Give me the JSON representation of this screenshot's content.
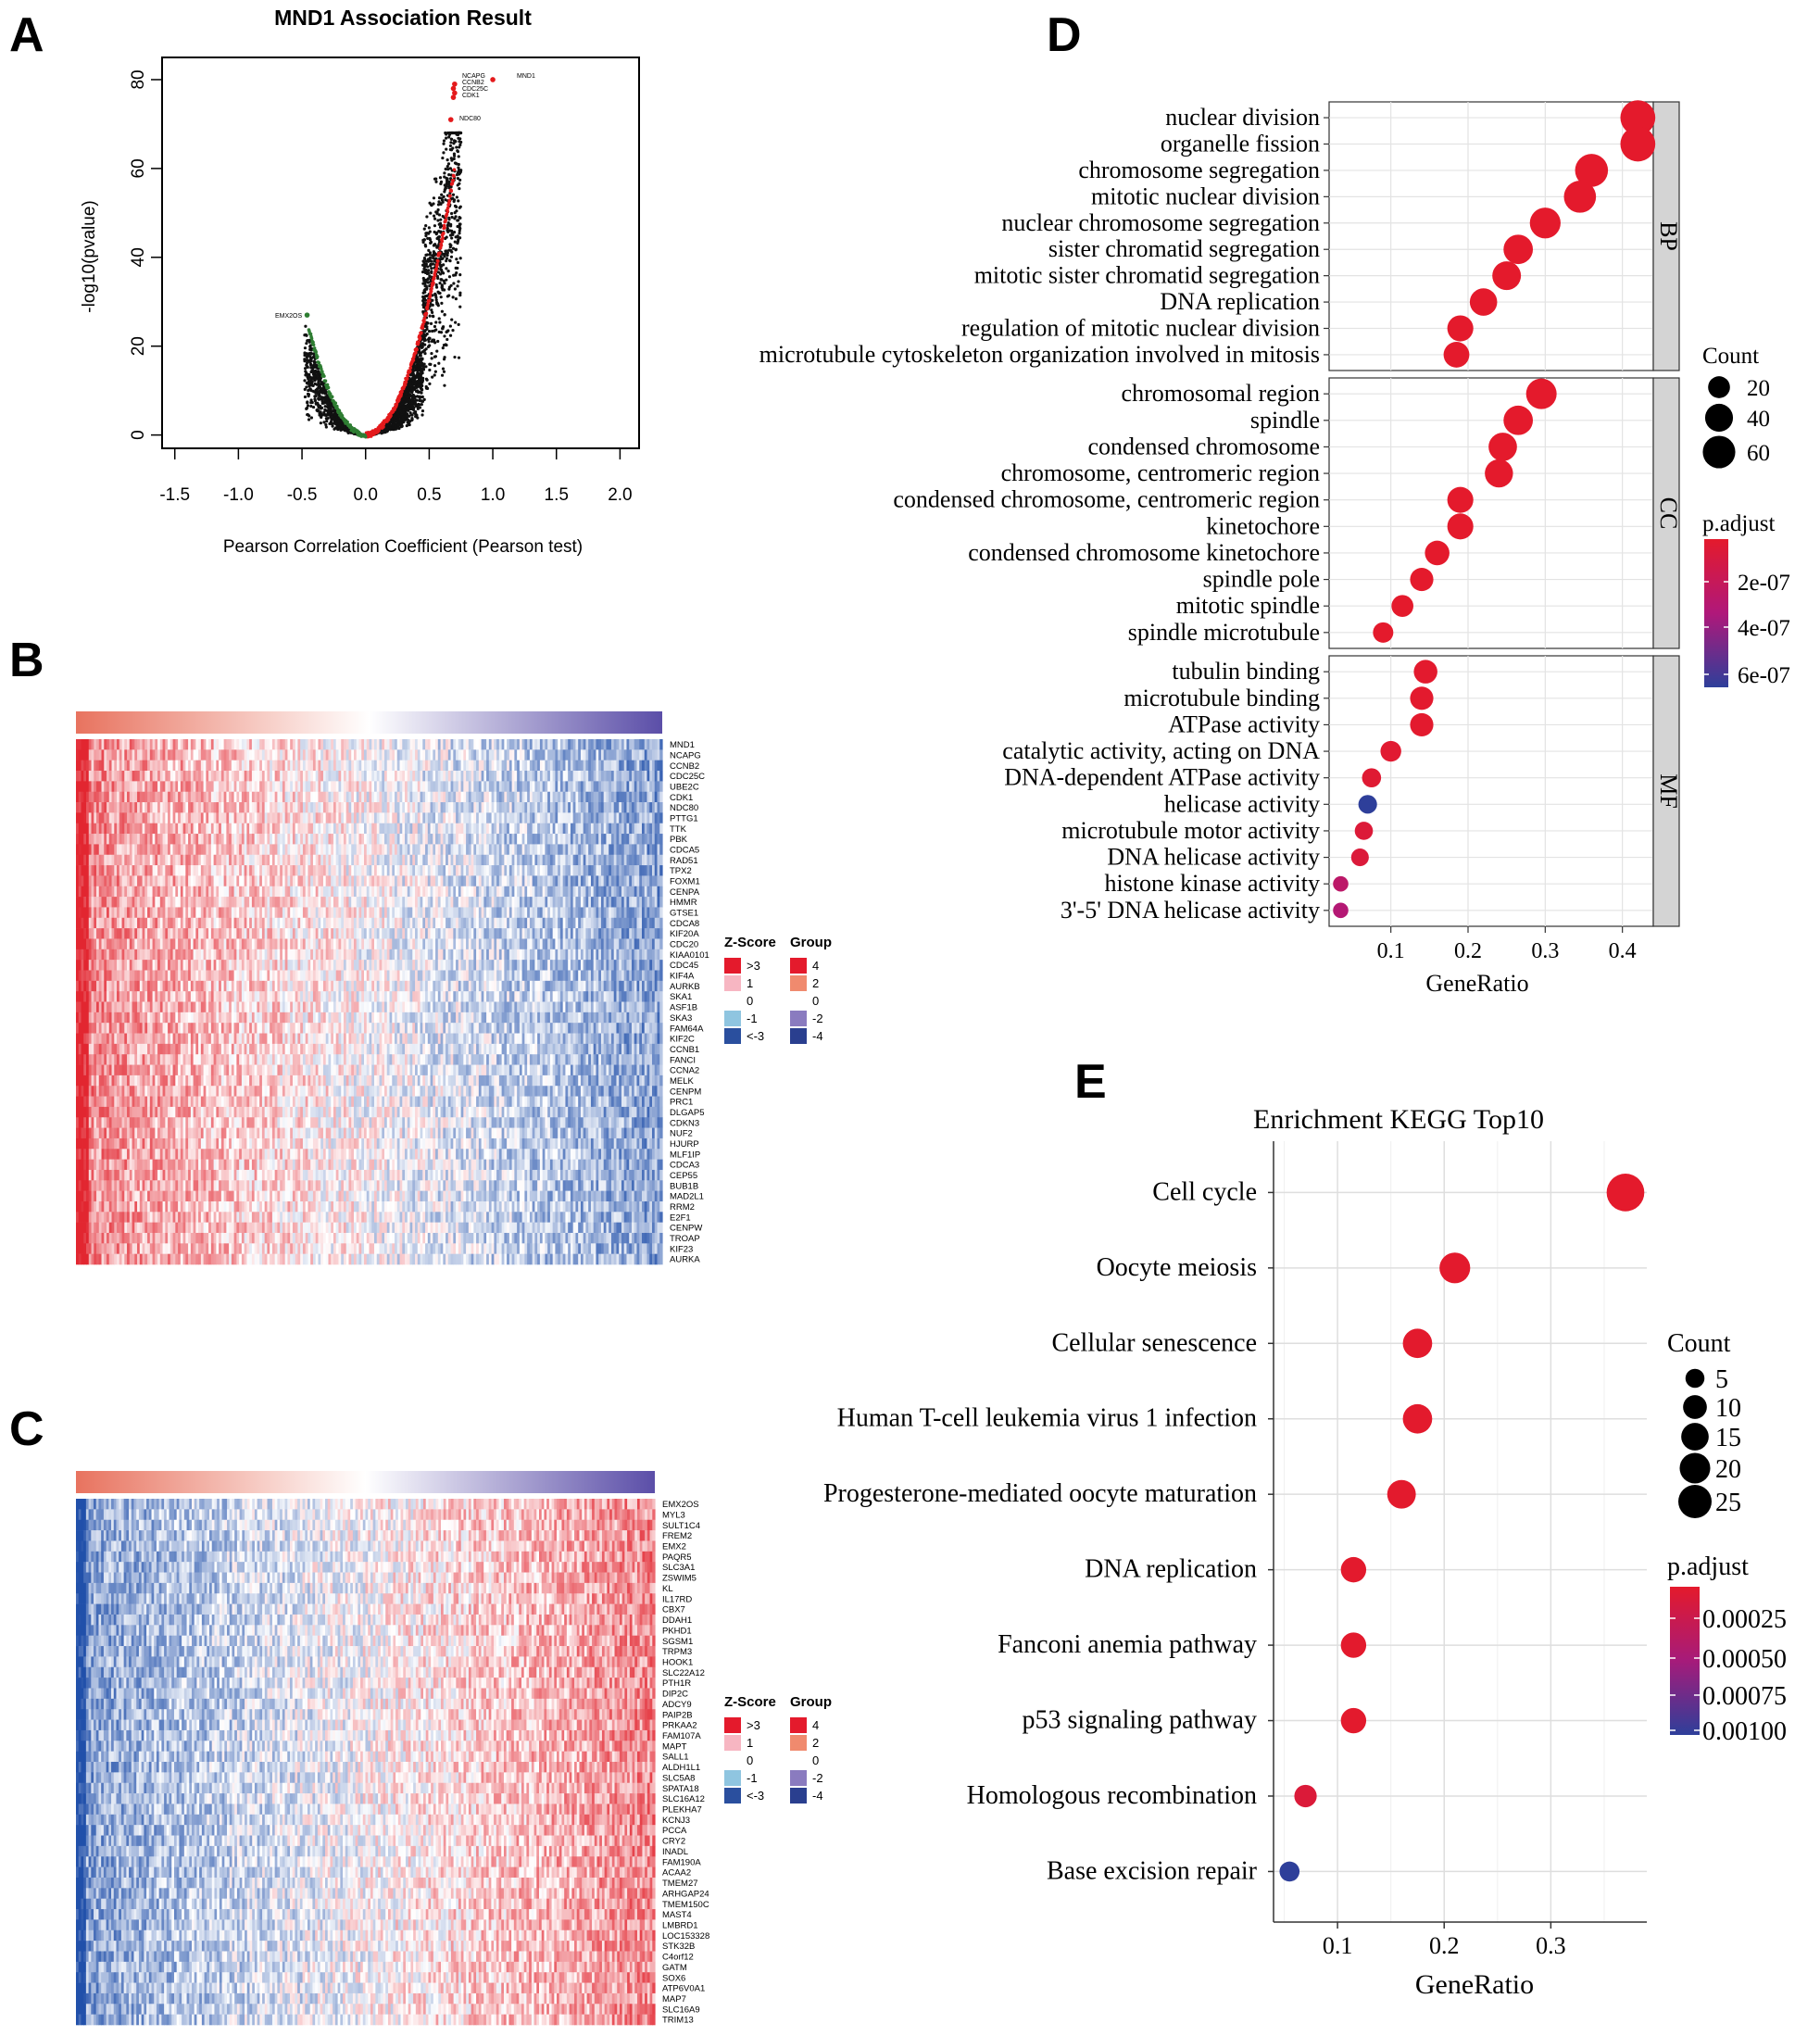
{
  "panel_labels": {
    "a": "A",
    "b": "B",
    "c": "C",
    "d": "D",
    "e": "E"
  },
  "panel_a": {
    "title": "MND1 Association Result",
    "xlabel": "Pearson Correlation Coefficient (Pearson test)",
    "ylabel": "-log10(pvalue)",
    "xticks": [
      "-1.5",
      "-1.0",
      "-0.5",
      "0.0",
      "0.5",
      "1.0",
      "1.5",
      "2.0"
    ],
    "yticks": [
      "0",
      "20",
      "40",
      "60",
      "80"
    ],
    "top_gene_labels": [
      "MND1",
      "NCAPG",
      "CCNB2",
      "CDC25C",
      "CDK1",
      "NDC80"
    ],
    "neg_gene_label": "EMX2OS",
    "positive_color": "#e41a1c",
    "negative_color": "#2e7d32"
  },
  "panel_b": {
    "genes": [
      "MND1",
      "NCAPG",
      "CCNB2",
      "CDC25C",
      "UBE2C",
      "CDK1",
      "NDC80",
      "PTTG1",
      "TTK",
      "PBK",
      "CDCA5",
      "RAD51",
      "TPX2",
      "FOXM1",
      "CENPA",
      "HMMR",
      "GTSE1",
      "CDCA8",
      "KIF20A",
      "CDC20",
      "KIAA0101",
      "CDC45",
      "KIF4A",
      "AURKB",
      "SKA1",
      "ASF1B",
      "SKA3",
      "FAM64A",
      "KIF2C",
      "CCNB1",
      "FANCI",
      "CCNA2",
      "MELK",
      "CENPM",
      "PRC1",
      "DLGAP5",
      "CDKN3",
      "NUF2",
      "HJURP",
      "MLF1IP",
      "CDCA3",
      "CEP55",
      "BUB1B",
      "MAD2L1",
      "RRM2",
      "E2F1",
      "CENPW",
      "TROAP",
      "KIF23",
      "AURKA"
    ],
    "legend_zscore_title": "Z-Score",
    "legend_group_title": "Group",
    "zscore_labels": [
      ">3",
      "1",
      "0",
      "-1",
      "<-3"
    ],
    "group_labels": [
      "4",
      "2",
      "0",
      "-2",
      "-4"
    ]
  },
  "panel_c": {
    "genes": [
      "EMX2OS",
      "MYL3",
      "SULT1C4",
      "FREM2",
      "EMX2",
      "PAQR5",
      "SLC3A1",
      "ZSWIM5",
      "KL",
      "IL17RD",
      "CBX7",
      "DDAH1",
      "PKHD1",
      "SGSM1",
      "TRPM3",
      "HOOK1",
      "SLC22A12",
      "PTH1R",
      "DIP2C",
      "ADCY9",
      "PAIP2B",
      "PRKAA2",
      "FAM107A",
      "MAPT",
      "SALL1",
      "ALDH1L1",
      "SLC5A8",
      "SPATA18",
      "SLC16A12",
      "PLEKHA7",
      "KCNJ3",
      "PCCA",
      "CRY2",
      "INADL",
      "FAM190A",
      "ACAA2",
      "TMEM27",
      "ARHGAP24",
      "TMEM150C",
      "MAST4",
      "LMBRD1",
      "LOC153328",
      "STK32B",
      "C4orf12",
      "GATM",
      "SOX6",
      "ATP6V0A1",
      "MAP7",
      "SLC16A9",
      "TRIM13"
    ],
    "legend_zscore_title": "Z-Score",
    "legend_group_title": "Group",
    "zscore_labels": [
      ">3",
      "1",
      "0",
      "-1",
      "<-3"
    ],
    "group_labels": [
      "4",
      "2",
      "0",
      "-2",
      "-4"
    ]
  },
  "chart_data": [
    {
      "type": "scatter",
      "title": "MND1 Association Result",
      "xlabel": "Pearson Correlation Coefficient (Pearson test)",
      "ylabel": "-log10(pvalue)",
      "xlim": [
        -1.6,
        2.15
      ],
      "ylim": [
        -3,
        85
      ],
      "highlighted_points": [
        {
          "label": "MND1",
          "x": 1.0,
          "y": 80
        },
        {
          "label": "NCAPG",
          "x": 0.7,
          "y": 79
        },
        {
          "label": "CCNB2",
          "x": 0.69,
          "y": 78
        },
        {
          "label": "CDC25C",
          "x": 0.7,
          "y": 77
        },
        {
          "label": "CDK1",
          "x": 0.69,
          "y": 76
        },
        {
          "label": "NDC80",
          "x": 0.67,
          "y": 71
        },
        {
          "label": "EMX2OS",
          "x": -0.46,
          "y": 27
        }
      ]
    },
    {
      "type": "scatter",
      "title": "",
      "xlabel": "GeneRatio",
      "xticks": [
        0.1,
        0.2,
        0.3,
        0.4
      ],
      "xlim": [
        0.02,
        0.44
      ],
      "facets": [
        "BP",
        "CC",
        "MF"
      ],
      "size_legend": {
        "title": "Count",
        "values": [
          20,
          40,
          60
        ]
      },
      "color_legend": {
        "title": "p.adjust",
        "values": [
          "2e-07",
          "4e-07",
          "6e-07"
        ]
      },
      "terms": [
        {
          "facet": "BP",
          "term": "nuclear division",
          "x": 0.42,
          "count": 72,
          "padj": 1e-09
        },
        {
          "facet": "BP",
          "term": "organelle fission",
          "x": 0.42,
          "count": 72,
          "padj": 1e-09
        },
        {
          "facet": "BP",
          "term": "chromosome segregation",
          "x": 0.36,
          "count": 62,
          "padj": 1e-09
        },
        {
          "facet": "BP",
          "term": "mitotic nuclear division",
          "x": 0.345,
          "count": 58,
          "padj": 1e-09
        },
        {
          "facet": "BP",
          "term": "nuclear chromosome segregation",
          "x": 0.3,
          "count": 52,
          "padj": 1e-09
        },
        {
          "facet": "BP",
          "term": "sister chromatid segregation",
          "x": 0.265,
          "count": 46,
          "padj": 1e-09
        },
        {
          "facet": "BP",
          "term": "mitotic sister chromatid segregation",
          "x": 0.25,
          "count": 43,
          "padj": 1e-09
        },
        {
          "facet": "BP",
          "term": "DNA replication",
          "x": 0.22,
          "count": 38,
          "padj": 1e-09
        },
        {
          "facet": "BP",
          "term": "regulation of mitotic nuclear division",
          "x": 0.19,
          "count": 33,
          "padj": 1e-09
        },
        {
          "facet": "BP",
          "term": "microtubule cytoskeleton organization involved in mitosis",
          "x": 0.185,
          "count": 32,
          "padj": 1e-09
        },
        {
          "facet": "CC",
          "term": "chromosomal region",
          "x": 0.295,
          "count": 51,
          "padj": 1e-09
        },
        {
          "facet": "CC",
          "term": "spindle",
          "x": 0.265,
          "count": 46,
          "padj": 1e-09
        },
        {
          "facet": "CC",
          "term": "condensed chromosome",
          "x": 0.245,
          "count": 42,
          "padj": 1e-09
        },
        {
          "facet": "CC",
          "term": "chromosome, centromeric region",
          "x": 0.24,
          "count": 41,
          "padj": 1e-09
        },
        {
          "facet": "CC",
          "term": "condensed chromosome, centromeric region",
          "x": 0.19,
          "count": 33,
          "padj": 1e-09
        },
        {
          "facet": "CC",
          "term": "kinetochore",
          "x": 0.19,
          "count": 33,
          "padj": 1e-09
        },
        {
          "facet": "CC",
          "term": "condensed chromosome kinetochore",
          "x": 0.16,
          "count": 28,
          "padj": 1e-09
        },
        {
          "facet": "CC",
          "term": "spindle pole",
          "x": 0.14,
          "count": 24,
          "padj": 1e-09
        },
        {
          "facet": "CC",
          "term": "mitotic spindle",
          "x": 0.115,
          "count": 20,
          "padj": 1e-09
        },
        {
          "facet": "CC",
          "term": "spindle microtubule",
          "x": 0.09,
          "count": 16,
          "padj": 1e-09
        },
        {
          "facet": "MF",
          "term": "tubulin binding",
          "x": 0.145,
          "count": 25,
          "padj": 1e-08
        },
        {
          "facet": "MF",
          "term": "microtubule binding",
          "x": 0.14,
          "count": 24,
          "padj": 1e-08
        },
        {
          "facet": "MF",
          "term": "ATPase activity",
          "x": 0.14,
          "count": 24,
          "padj": 1e-08
        },
        {
          "facet": "MF",
          "term": "catalytic activity, acting on DNA",
          "x": 0.1,
          "count": 17,
          "padj": 2e-08
        },
        {
          "facet": "MF",
          "term": "DNA-dependent ATPase activity",
          "x": 0.075,
          "count": 13,
          "padj": 3e-08
        },
        {
          "facet": "MF",
          "term": "helicase activity",
          "x": 0.07,
          "count": 12,
          "padj": 6.5e-07
        },
        {
          "facet": "MF",
          "term": "microtubule motor activity",
          "x": 0.065,
          "count": 11,
          "padj": 5e-08
        },
        {
          "facet": "MF",
          "term": "DNA helicase activity",
          "x": 0.06,
          "count": 10,
          "padj": 6e-08
        },
        {
          "facet": "MF",
          "term": "histone kinase activity",
          "x": 0.035,
          "count": 6,
          "padj": 2.5e-07
        },
        {
          "facet": "MF",
          "term": "3'-5' DNA helicase activity",
          "x": 0.035,
          "count": 6,
          "padj": 3e-07
        }
      ]
    },
    {
      "type": "scatter",
      "title": "Enrichment KEGG Top10",
      "xlabel": "GeneRatio",
      "xticks": [
        0.1,
        0.2,
        0.3
      ],
      "xlim": [
        0.04,
        0.39
      ],
      "size_legend": {
        "title": "Count",
        "values": [
          5,
          10,
          15,
          20,
          25
        ]
      },
      "color_legend": {
        "title": "p.adjust",
        "values": [
          "0.00025",
          "0.00050",
          "0.00075",
          "0.00100"
        ]
      },
      "terms": [
        {
          "term": "Cell cycle",
          "x": 0.37,
          "count": 28,
          "padj": 1e-05
        },
        {
          "term": "Oocyte meiosis",
          "x": 0.21,
          "count": 16,
          "padj": 2e-05
        },
        {
          "term": "Cellular senescence",
          "x": 0.175,
          "count": 14,
          "padj": 2e-05
        },
        {
          "term": "Human T-cell leukemia virus 1 infection",
          "x": 0.175,
          "count": 14,
          "padj": 2e-05
        },
        {
          "term": "Progesterone-mediated oocyte maturation",
          "x": 0.16,
          "count": 13,
          "padj": 2e-05
        },
        {
          "term": "DNA replication",
          "x": 0.115,
          "count": 9,
          "padj": 2e-05
        },
        {
          "term": "Fanconi anemia pathway",
          "x": 0.115,
          "count": 9,
          "padj": 2e-05
        },
        {
          "term": "p53 signaling pathway",
          "x": 0.115,
          "count": 9,
          "padj": 2e-05
        },
        {
          "term": "Homologous recombination",
          "x": 0.07,
          "count": 6,
          "padj": 0.0001
        },
        {
          "term": "Base excision repair",
          "x": 0.055,
          "count": 4,
          "padj": 0.0011
        }
      ]
    }
  ]
}
